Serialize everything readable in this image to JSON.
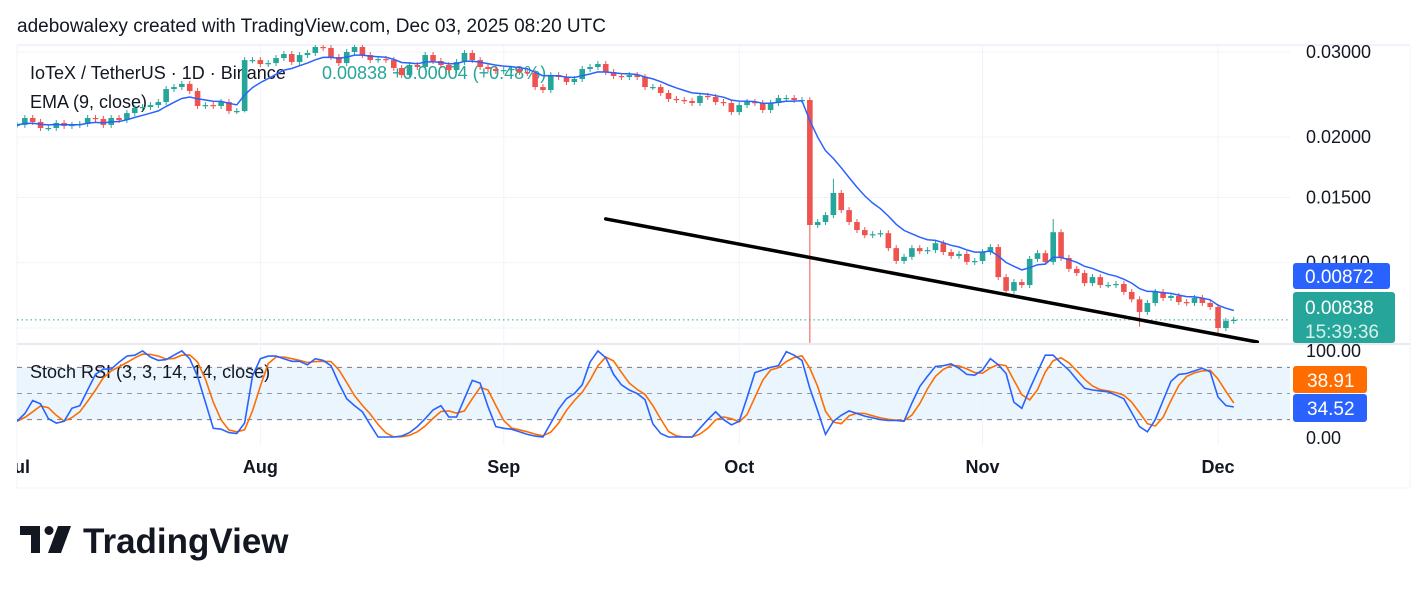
{
  "header": {
    "caption": "adebowalexy created with TradingView.com, Dec 03, 2025 08:20 UTC"
  },
  "legend": {
    "symbol": "IoTeX / TetherUS · 1D · Binance",
    "quote": "0.00838 +0.00004 (+0.48%)",
    "ema": "EMA (9, close)",
    "stoch": "Stoch RSI (3, 3, 14, 14, close)"
  },
  "logo": {
    "text": "TradingView"
  },
  "colors": {
    "up": "#26a69a",
    "down": "#ef5350",
    "ema": "#2962ff",
    "stoch_k": "#2962ff",
    "stoch_d": "#ff6d00",
    "trendline": "#000000",
    "band": "#e3f2fd"
  },
  "labels": {
    "ema_value": "0.00872",
    "last_price": "0.00838",
    "countdown": "15:39:36",
    "stoch_d_value": "38.91",
    "stoch_k_value": "34.52"
  },
  "chart_data": {
    "type": "candlestick",
    "price_scale": "log",
    "grid": true,
    "price_ticks": [
      {
        "label": "0.03000",
        "value": 0.03
      },
      {
        "label": "0.02000",
        "value": 0.02
      },
      {
        "label": "0.01500",
        "value": 0.015
      },
      {
        "label": "0.01100",
        "value": 0.011
      }
    ],
    "stoch_ticks": [
      {
        "label": "100.00",
        "value": 100
      },
      {
        "label": "0.00",
        "value": 0
      }
    ],
    "stoch_bands": [
      80,
      50,
      20
    ],
    "time_ticks": [
      {
        "label": "Jul",
        "date": "2025-07-01"
      },
      {
        "label": "Aug",
        "date": "2025-08-01"
      },
      {
        "label": "Sep",
        "date": "2025-09-01"
      },
      {
        "label": "Oct",
        "date": "2025-10-01"
      },
      {
        "label": "Nov",
        "date": "2025-11-01"
      },
      {
        "label": "Dec",
        "date": "2025-12-01"
      }
    ],
    "columns": [
      "date",
      "close",
      "stoch_k"
    ],
    "candles": [
      [
        "2025-07-01",
        0.0212,
        18
      ],
      [
        "2025-07-02",
        0.02191,
        27
      ],
      [
        "2025-07-03",
        0.0215,
        42
      ],
      [
        "2025-07-04",
        0.02089,
        38
      ],
      [
        "2025-07-05",
        0.02089,
        21
      ],
      [
        "2025-07-06",
        0.0214,
        16
      ],
      [
        "2025-07-07",
        0.02109,
        18
      ],
      [
        "2025-07-08",
        0.0212,
        33
      ],
      [
        "2025-07-09",
        0.0213,
        36
      ],
      [
        "2025-07-10",
        0.02191,
        54
      ],
      [
        "2025-07-11",
        0.02181,
        72
      ],
      [
        "2025-07-12",
        0.0212,
        78
      ],
      [
        "2025-07-13",
        0.02191,
        78
      ],
      [
        "2025-07-14",
        0.0217,
        86
      ],
      [
        "2025-07-15",
        0.02243,
        93
      ],
      [
        "2025-07-16",
        0.02298,
        94
      ],
      [
        "2025-07-17",
        0.02309,
        99
      ],
      [
        "2025-07-18",
        0.0233,
        92
      ],
      [
        "2025-07-19",
        0.02364,
        88
      ],
      [
        "2025-07-20",
        0.02515,
        89
      ],
      [
        "2025-07-21",
        0.02539,
        94
      ],
      [
        "2025-07-22",
        0.02577,
        99
      ],
      [
        "2025-07-23",
        0.02492,
        90
      ],
      [
        "2025-07-24",
        0.0232,
        70
      ],
      [
        "2025-07-25",
        0.0233,
        40
      ],
      [
        "2025-07-26",
        0.0232,
        10
      ],
      [
        "2025-07-27",
        0.02364,
        9
      ],
      [
        "2025-07-28",
        0.02265,
        5
      ],
      [
        "2025-07-29",
        0.02265,
        4
      ],
      [
        "2025-07-30",
        0.02887,
        16
      ],
      [
        "2025-07-31",
        0.02887,
        70
      ],
      [
        "2025-08-01",
        0.02833,
        90
      ],
      [
        "2025-08-02",
        0.02846,
        93
      ],
      [
        "2025-08-03",
        0.02915,
        93
      ],
      [
        "2025-08-04",
        0.02971,
        90
      ],
      [
        "2025-08-05",
        0.0286,
        87
      ],
      [
        "2025-08-06",
        0.02957,
        87
      ],
      [
        "2025-08-07",
        0.02986,
        83
      ],
      [
        "2025-08-08",
        0.03072,
        90
      ],
      [
        "2025-08-09",
        0.03058,
        88
      ],
      [
        "2025-08-10",
        0.02929,
        82
      ],
      [
        "2025-08-11",
        0.02846,
        62
      ],
      [
        "2025-08-12",
        0.03,
        44
      ],
      [
        "2025-08-13",
        0.03072,
        36
      ],
      [
        "2025-08-14",
        0.02957,
        29
      ],
      [
        "2025-08-15",
        0.02887,
        14
      ],
      [
        "2025-08-16",
        0.02901,
        0
      ],
      [
        "2025-08-17",
        0.02887,
        0
      ],
      [
        "2025-08-18",
        0.0278,
        0
      ],
      [
        "2025-08-19",
        0.02688,
        1
      ],
      [
        "2025-08-20",
        0.0282,
        5
      ],
      [
        "2025-08-21",
        0.02793,
        12
      ],
      [
        "2025-08-22",
        0.02957,
        21
      ],
      [
        "2025-08-23",
        0.02874,
        31
      ],
      [
        "2025-08-24",
        0.0282,
        36
      ],
      [
        "2025-08-25",
        0.02753,
        23
      ],
      [
        "2025-08-26",
        0.0286,
        23
      ],
      [
        "2025-08-27",
        0.02986,
        44
      ],
      [
        "2025-08-28",
        0.02887,
        65
      ],
      [
        "2025-08-29",
        0.02793,
        62
      ],
      [
        "2025-08-30",
        0.02767,
        35
      ],
      [
        "2025-08-31",
        0.0274,
        12
      ],
      [
        "2025-09-01",
        0.02753,
        10
      ],
      [
        "2025-09-02",
        0.02767,
        9
      ],
      [
        "2025-09-03",
        0.02727,
        6
      ],
      [
        "2025-09-04",
        0.02714,
        3
      ],
      [
        "2025-09-05",
        0.02539,
        1
      ],
      [
        "2025-09-06",
        0.02503,
        0
      ],
      [
        "2025-09-07",
        0.02688,
        16
      ],
      [
        "2025-09-08",
        0.02663,
        32
      ],
      [
        "2025-09-09",
        0.02601,
        44
      ],
      [
        "2025-09-10",
        0.02638,
        50
      ],
      [
        "2025-09-11",
        0.02767,
        60
      ],
      [
        "2025-09-12",
        0.02793,
        86
      ],
      [
        "2025-09-13",
        0.02833,
        99
      ],
      [
        "2025-09-14",
        0.02727,
        91
      ],
      [
        "2025-09-15",
        0.02676,
        72
      ],
      [
        "2025-09-16",
        0.02663,
        60
      ],
      [
        "2025-09-17",
        0.02688,
        54
      ],
      [
        "2025-09-18",
        0.02663,
        50
      ],
      [
        "2025-09-19",
        0.02539,
        43
      ],
      [
        "2025-09-20",
        0.02539,
        15
      ],
      [
        "2025-09-21",
        0.02468,
        4
      ],
      [
        "2025-09-22",
        0.02399,
        0
      ],
      [
        "2025-09-23",
        0.02387,
        0
      ],
      [
        "2025-09-24",
        0.02376,
        0
      ],
      [
        "2025-09-25",
        0.02353,
        0
      ],
      [
        "2025-09-26",
        0.02434,
        10
      ],
      [
        "2025-09-27",
        0.02422,
        20
      ],
      [
        "2025-09-28",
        0.02364,
        29
      ],
      [
        "2025-09-29",
        0.02353,
        20
      ],
      [
        "2025-09-30",
        0.02254,
        14
      ],
      [
        "2025-10-01",
        0.0233,
        18
      ],
      [
        "2025-10-02",
        0.02364,
        45
      ],
      [
        "2025-10-03",
        0.02353,
        74
      ],
      [
        "2025-10-04",
        0.02276,
        77
      ],
      [
        "2025-10-05",
        0.02353,
        80
      ],
      [
        "2025-10-06",
        0.0241,
        82
      ],
      [
        "2025-10-07",
        0.0241,
        98
      ],
      [
        "2025-10-08",
        0.02387,
        94
      ],
      [
        "2025-10-09",
        0.02387,
        88
      ],
      [
        "2025-10-10",
        0.01316,
        56
      ],
      [
        "2025-10-11",
        0.01335,
        30
      ],
      [
        "2025-10-12",
        0.0138,
        3
      ],
      [
        "2025-10-13",
        0.01533,
        18
      ],
      [
        "2025-10-14",
        0.01413,
        25
      ],
      [
        "2025-10-15",
        0.01335,
        30
      ],
      [
        "2025-10-16",
        0.01285,
        27
      ],
      [
        "2025-10-17",
        0.01254,
        24
      ],
      [
        "2025-10-18",
        0.0126,
        22
      ],
      [
        "2025-10-19",
        0.01266,
        20
      ],
      [
        "2025-10-20",
        0.01179,
        19
      ],
      [
        "2025-10-21",
        0.01109,
        19
      ],
      [
        "2025-10-22",
        0.01131,
        18
      ],
      [
        "2025-10-23",
        0.01179,
        39
      ],
      [
        "2025-10-24",
        0.01162,
        58
      ],
      [
        "2025-10-25",
        0.01168,
        70
      ],
      [
        "2025-10-26",
        0.01207,
        81
      ],
      [
        "2025-10-27",
        0.01157,
        82
      ],
      [
        "2025-10-28",
        0.01136,
        84
      ],
      [
        "2025-10-29",
        0.01147,
        79
      ],
      [
        "2025-10-30",
        0.01104,
        72
      ],
      [
        "2025-10-31",
        0.01109,
        71
      ],
      [
        "2025-11-01",
        0.01157,
        77
      ],
      [
        "2025-11-02",
        0.01185,
        90
      ],
      [
        "2025-11-03",
        0.01027,
        83
      ],
      [
        "2025-11-04",
        0.00962,
        73
      ],
      [
        "2025-11-05",
        0.01003,
        40
      ],
      [
        "2025-11-06",
        0.00989,
        33
      ],
      [
        "2025-11-07",
        0.0112,
        55
      ],
      [
        "2025-11-08",
        0.01151,
        75
      ],
      [
        "2025-11-09",
        0.01104,
        94
      ],
      [
        "2025-11-10",
        0.01272,
        94
      ],
      [
        "2025-11-11",
        0.01125,
        85
      ],
      [
        "2025-11-12",
        0.01068,
        77
      ],
      [
        "2025-11-13",
        0.01047,
        66
      ],
      [
        "2025-11-14",
        0.00998,
        56
      ],
      [
        "2025-11-15",
        0.01027,
        54
      ],
      [
        "2025-11-16",
        0.00989,
        53
      ],
      [
        "2025-11-17",
        0.00989,
        52
      ],
      [
        "2025-11-18",
        0.00994,
        48
      ],
      [
        "2025-11-19",
        0.00957,
        44
      ],
      [
        "2025-11-20",
        0.00924,
        28
      ],
      [
        "2025-11-21",
        0.0087,
        12
      ],
      [
        "2025-11-22",
        0.00908,
        6
      ],
      [
        "2025-11-23",
        0.00957,
        20
      ],
      [
        "2025-11-24",
        0.0093,
        42
      ],
      [
        "2025-11-25",
        0.00939,
        64
      ],
      [
        "2025-11-26",
        0.00912,
        72
      ],
      [
        "2025-11-27",
        0.00908,
        73
      ],
      [
        "2025-11-28",
        0.0093,
        76
      ],
      [
        "2025-11-29",
        0.00908,
        79
      ],
      [
        "2025-11-30",
        0.00891,
        75
      ],
      [
        "2025-12-01",
        0.00806,
        46
      ],
      [
        "2025-12-02",
        0.00834,
        36.21
      ],
      [
        "2025-12-03",
        0.00838,
        34.52
      ]
    ],
    "wicks": {
      "2025-07-30": {
        "low": 0.0225
      },
      "2025-10-10": {
        "high": 0.0242,
        "low": 0.0075
      },
      "2025-10-13": {
        "high": 0.0164
      },
      "2025-11-10": {
        "high": 0.01355
      },
      "2025-11-21": {
        "low": 0.00811
      },
      "2025-12-01": {
        "low": 0.00787
      }
    },
    "trendline": [
      {
        "date": "2025-09-14",
        "price": 0.01355
      },
      {
        "date": "2025-12-06",
        "price": 0.00754
      }
    ]
  }
}
